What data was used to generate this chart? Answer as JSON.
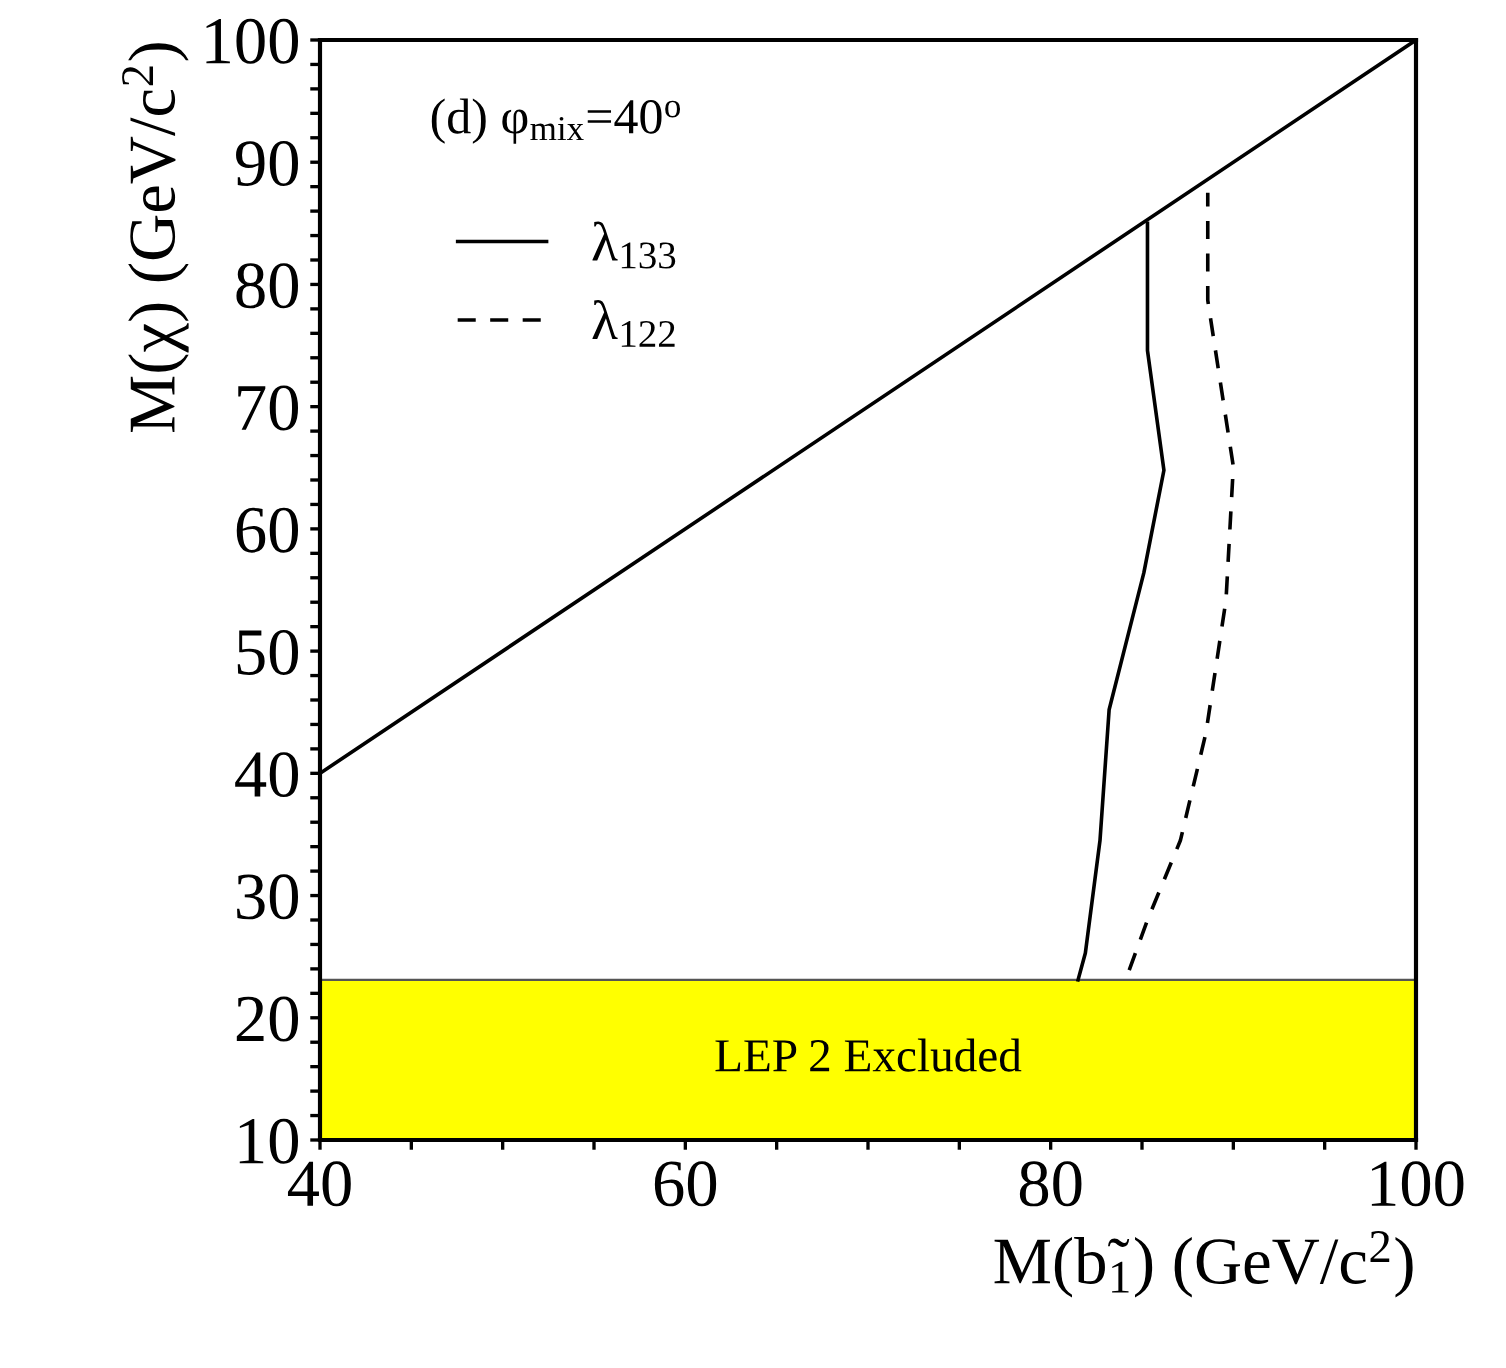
{
  "chart_data": {
    "type": "line",
    "xlabel": "M(b̃$_{1}$) (GeV/c$^{2}$)",
    "ylabel": "M(χ) (GeV/c$^{2}$)",
    "annotations": [
      "(d) φ$_{mix}$=40$^{o}$"
    ],
    "series": [
      {
        "color": "#000000",
        "line_style": "solid",
        "x": [
          40,
          100
        ],
        "values": [
          40,
          100
        ]
      },
      {
        "name": "λ$_{133}$",
        "color": "#000000",
        "line_style": "solid",
        "x": [
          81.5,
          81.9,
          82.7,
          83.2,
          85.1,
          86.2,
          85.3,
          85.3
        ],
        "values": [
          23.1,
          25.3,
          34.5,
          45.2,
          56.4,
          64.8,
          74.6,
          85.0
        ]
      },
      {
        "name": "λ$_{122}$",
        "color": "#000000",
        "line_style": "dashed",
        "x": [
          84.3,
          85.3,
          87.1,
          88.5,
          89.6,
          90.0,
          88.6,
          88.6
        ],
        "values": [
          23.9,
          28.0,
          34.5,
          43.3,
          54.2,
          65.1,
          78.7,
          87.5
        ]
      }
    ],
    "bands": [
      {
        "axis": "y",
        "from": 10,
        "to": 23.1,
        "label": "LEP 2 Excluded",
        "color": "#ffff00"
      }
    ],
    "xlim": [
      40,
      100
    ],
    "ylim": [
      10,
      100
    ],
    "xticks": [
      40,
      {
        "value": 45,
        "label": null
      },
      {
        "value": 50,
        "label": null
      },
      {
        "value": 55,
        "label": null
      },
      60,
      {
        "value": 65,
        "label": null
      },
      {
        "value": 70,
        "label": null
      },
      {
        "value": 75,
        "label": null
      },
      80,
      {
        "value": 85,
        "label": null
      },
      {
        "value": 90,
        "label": null
      },
      {
        "value": 95,
        "label": null
      },
      100
    ],
    "yticks": [
      10,
      {
        "value": 12,
        "label": null
      },
      {
        "value": 14,
        "label": null
      },
      {
        "value": 16,
        "label": null
      },
      {
        "value": 18,
        "label": null
      },
      20,
      {
        "value": 22,
        "label": null
      },
      {
        "value": 24,
        "label": null
      },
      {
        "value": 26,
        "label": null
      },
      {
        "value": 28,
        "label": null
      },
      30,
      {
        "value": 32,
        "label": null
      },
      {
        "value": 34,
        "label": null
      },
      {
        "value": 36,
        "label": null
      },
      {
        "value": 38,
        "label": null
      },
      40,
      {
        "value": 42,
        "label": null
      },
      {
        "value": 44,
        "label": null
      },
      {
        "value": 46,
        "label": null
      },
      {
        "value": 48,
        "label": null
      },
      50,
      {
        "value": 52,
        "label": null
      },
      {
        "value": 54,
        "label": null
      },
      {
        "value": 56,
        "label": null
      },
      {
        "value": 58,
        "label": null
      },
      60,
      {
        "value": 62,
        "label": null
      },
      {
        "value": 64,
        "label": null
      },
      {
        "value": 66,
        "label": null
      },
      {
        "value": 68,
        "label": null
      },
      70,
      {
        "value": 72,
        "label": null
      },
      {
        "value": 74,
        "label": null
      },
      {
        "value": 76,
        "label": null
      },
      {
        "value": 78,
        "label": null
      },
      80,
      {
        "value": 82,
        "label": null
      },
      {
        "value": 84,
        "label": null
      },
      {
        "value": 86,
        "label": null
      },
      {
        "value": 88,
        "label": null
      },
      90,
      {
        "value": 92,
        "label": null
      },
      {
        "value": 94,
        "label": null
      },
      {
        "value": 96,
        "label": null
      },
      {
        "value": 98,
        "label": null
      },
      100
    ],
    "grid": false,
    "legend": "top left"
  }
}
